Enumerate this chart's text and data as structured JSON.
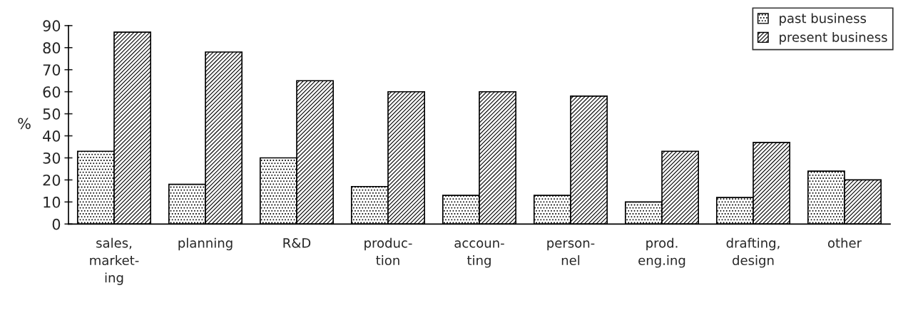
{
  "chart_data": {
    "type": "bar",
    "ylabel": "%",
    "categories": [
      "sales,\nmarket-\ning",
      "planning",
      "R&D",
      "produc-\ntion",
      "accoun-\nting",
      "person-\nnel",
      "prod.\neng.ing",
      "drafting,\ndesign",
      "other"
    ],
    "series": [
      {
        "name": "past business",
        "color": "#000000",
        "values": [
          33,
          18,
          30,
          17,
          13,
          13,
          10,
          12,
          24
        ]
      },
      {
        "name": "present business",
        "color": "#000000",
        "values": [
          87,
          78,
          65,
          60,
          60,
          58,
          33,
          37,
          20
        ]
      }
    ],
    "ylim": [
      0,
      90
    ],
    "yticks": [
      0,
      10,
      20,
      30,
      40,
      50,
      60,
      70,
      80,
      90
    ],
    "grid": false,
    "legend": "top right"
  }
}
